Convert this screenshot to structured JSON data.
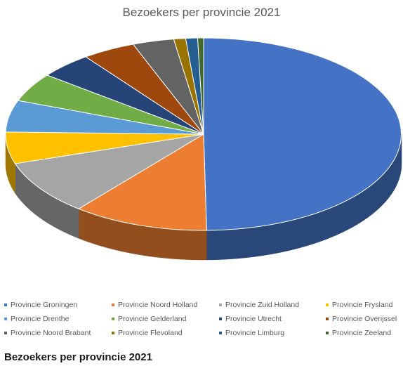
{
  "chart_data": {
    "type": "pie",
    "title": "Bezoekers per provincie 2021",
    "caption": "Bezoekers per provincie 2021",
    "legend_position": "bottom",
    "categories": [
      "Provincie Groningen",
      "Provincie Noord Holland",
      "Provincie Zuid Holland",
      "Provincie Frysland",
      "Provincie Drenthe",
      "Provincie Gelderland",
      "Provincie Utrecht",
      "Provincie Overijssel",
      "Provincie Noord Brabant",
      "Provincie Flevoland",
      "Provincie Limburg",
      "Provincie Zeeland"
    ],
    "values": [
      51.5,
      11.5,
      9.5,
      5.5,
      5.5,
      5,
      4.5,
      4.5,
      3.5,
      1,
      1,
      0.5
    ],
    "colors": [
      "#4472c4",
      "#ed7d31",
      "#a5a5a5",
      "#ffc000",
      "#5b9bd5",
      "#70ad47",
      "#264478",
      "#9e480e",
      "#636363",
      "#997300",
      "#255e91",
      "#43682b"
    ]
  }
}
